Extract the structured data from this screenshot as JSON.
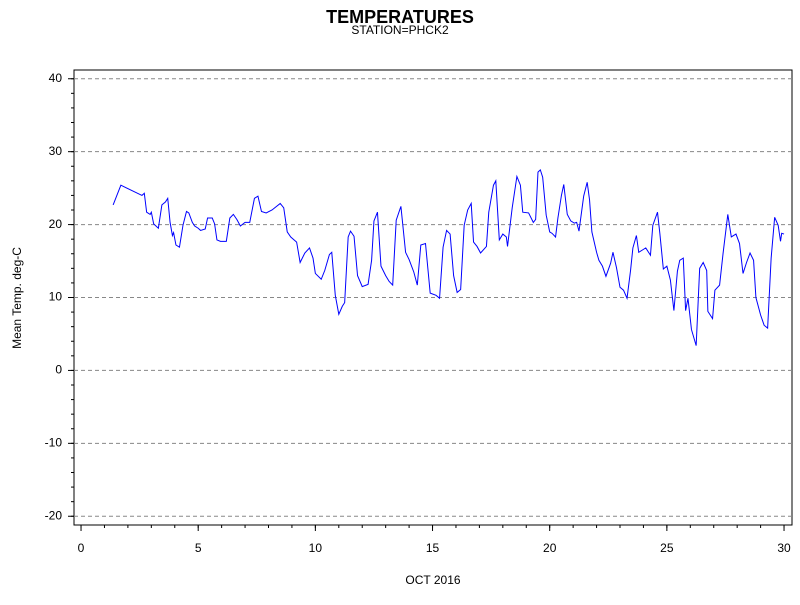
{
  "chart_data": {
    "type": "line",
    "title": "TEMPERATURES",
    "subtitle": "STATION=PHCK2",
    "x_label": "OCT 2016",
    "y_label": "Mean Temp. deg-C",
    "xlim": [
      -0.3,
      30.34
    ],
    "ylim": [
      -21.2,
      41.2
    ],
    "xticks": [
      0,
      5,
      10,
      15,
      20,
      25,
      30
    ],
    "yticks": [
      -20,
      -10,
      0,
      10,
      20,
      30,
      40
    ],
    "xminorticks": [
      0,
      1,
      2,
      3,
      4,
      5,
      6,
      7,
      8,
      9,
      10,
      11,
      12,
      13,
      14,
      15,
      16,
      17,
      18,
      19,
      20,
      21,
      22,
      23,
      24,
      25,
      26,
      27,
      28,
      29,
      30
    ],
    "yminorticks": [
      -20,
      -18,
      -16,
      -14,
      -12,
      -10,
      -8,
      -6,
      -4,
      -2,
      0,
      2,
      4,
      6,
      8,
      10,
      12,
      14,
      16,
      18,
      20,
      22,
      24,
      26,
      28,
      30,
      32,
      34,
      36,
      38,
      40
    ],
    "grid": true,
    "grid_style": "dashed",
    "series": [
      {
        "name": "Mean Temp",
        "color": "#0000ff",
        "x": [
          1.37,
          1.7,
          2.6,
          2.7,
          2.8,
          2.95,
          3.0,
          3.1,
          3.3,
          3.45,
          3.6,
          3.7,
          3.8,
          3.9,
          3.95,
          4.05,
          4.2,
          4.35,
          4.5,
          4.6,
          4.75,
          4.85,
          5.0,
          5.1,
          5.3,
          5.4,
          5.6,
          5.7,
          5.8,
          5.95,
          6.2,
          6.35,
          6.5,
          6.65,
          6.8,
          7.0,
          7.2,
          7.4,
          7.55,
          7.7,
          7.9,
          8.15,
          8.5,
          8.65,
          8.8,
          8.95,
          9.2,
          9.35,
          9.55,
          9.75,
          9.9,
          10.0,
          10.25,
          10.4,
          10.6,
          10.7,
          10.85,
          11.0,
          11.15,
          11.25,
          11.4,
          11.5,
          11.65,
          11.8,
          12.0,
          12.25,
          12.4,
          12.5,
          12.65,
          12.8,
          13.0,
          13.15,
          13.3,
          13.45,
          13.65,
          13.85,
          14.0,
          14.2,
          14.35,
          14.5,
          14.7,
          14.9,
          15.15,
          15.3,
          15.45,
          15.6,
          15.75,
          15.9,
          16.05,
          16.2,
          16.35,
          16.5,
          16.65,
          16.75,
          16.9,
          17.05,
          17.3,
          17.4,
          17.6,
          17.7,
          17.85,
          18.0,
          18.15,
          18.2,
          18.4,
          18.6,
          18.75,
          18.85,
          19.1,
          19.3,
          19.4,
          19.5,
          19.6,
          19.7,
          19.85,
          20.0,
          20.1,
          20.25,
          20.35,
          20.5,
          20.6,
          20.75,
          20.9,
          21.05,
          21.15,
          21.25,
          21.45,
          21.6,
          21.7,
          21.8,
          22.0,
          22.1,
          22.25,
          22.4,
          22.6,
          22.7,
          22.85,
          23.0,
          23.15,
          23.3,
          23.45,
          23.55,
          23.7,
          23.8,
          24.0,
          24.1,
          24.3,
          24.4,
          24.6,
          24.7,
          24.85,
          25.0,
          25.15,
          25.3,
          25.45,
          25.55,
          25.7,
          25.8,
          25.9,
          26.05,
          26.25,
          26.4,
          26.55,
          26.7,
          26.75,
          26.95,
          27.05,
          27.25,
          27.4,
          27.6,
          27.75,
          27.95,
          28.1,
          28.25,
          28.4,
          28.55,
          28.7,
          28.8,
          29.0,
          29.15,
          29.3,
          29.45,
          29.6,
          29.75,
          29.85,
          29.9,
          30.0
        ],
        "values": [
          22.7,
          25.4,
          24.0,
          24.3,
          21.7,
          21.4,
          21.7,
          20.1,
          19.5,
          22.7,
          23.1,
          23.6,
          20.3,
          18.5,
          18.9,
          17.2,
          16.9,
          19.9,
          21.8,
          21.6,
          20.3,
          19.8,
          19.5,
          19.2,
          19.4,
          20.9,
          20.9,
          20.1,
          17.9,
          17.7,
          17.7,
          20.9,
          21.4,
          20.7,
          19.8,
          20.3,
          20.3,
          23.6,
          23.9,
          21.8,
          21.6,
          22.0,
          22.9,
          22.3,
          19.0,
          18.3,
          17.6,
          14.8,
          16.1,
          16.8,
          15.4,
          13.3,
          12.5,
          13.7,
          15.9,
          16.2,
          10.3,
          7.7,
          8.8,
          9.3,
          18.3,
          19.1,
          18.4,
          13.0,
          11.5,
          11.8,
          15.1,
          20.5,
          21.7,
          14.3,
          13.0,
          12.2,
          11.7,
          20.6,
          22.5,
          16.2,
          15.2,
          13.5,
          11.7,
          17.2,
          17.4,
          10.6,
          10.3,
          9.9,
          16.9,
          19.2,
          18.7,
          13.0,
          10.7,
          11.1,
          19.9,
          22.0,
          22.9,
          17.6,
          17.0,
          16.1,
          17.0,
          21.7,
          25.4,
          26.0,
          17.9,
          18.7,
          18.3,
          17.0,
          22.3,
          26.6,
          25.4,
          21.7,
          21.6,
          20.3,
          20.7,
          27.2,
          27.5,
          26.5,
          21.3,
          19.0,
          18.8,
          18.3,
          20.9,
          24.0,
          25.5,
          21.4,
          20.5,
          20.2,
          20.3,
          19.1,
          23.9,
          25.8,
          23.4,
          19.0,
          16.2,
          15.1,
          14.3,
          12.9,
          14.7,
          16.2,
          14.1,
          11.4,
          11.0,
          9.9,
          13.7,
          16.8,
          18.5,
          16.2,
          16.6,
          16.8,
          15.8,
          19.9,
          21.7,
          18.8,
          13.9,
          14.3,
          12.4,
          8.2,
          13.6,
          15.1,
          15.4,
          8.2,
          9.9,
          5.6,
          3.4,
          14.0,
          14.8,
          13.7,
          8.1,
          7.1,
          11.0,
          11.7,
          16.1,
          21.4,
          18.3,
          18.7,
          17.4,
          13.3,
          14.8,
          16.1,
          15.1,
          10.0,
          7.6,
          6.2,
          5.8,
          15.4,
          21.0,
          19.9,
          17.7,
          18.8,
          18.7
        ]
      }
    ]
  }
}
